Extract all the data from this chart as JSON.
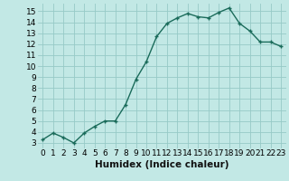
{
  "x": [
    0,
    1,
    2,
    3,
    4,
    5,
    6,
    7,
    8,
    9,
    10,
    11,
    12,
    13,
    14,
    15,
    16,
    17,
    18,
    19,
    20,
    21,
    22,
    23
  ],
  "y": [
    3.3,
    3.9,
    3.5,
    3.0,
    3.9,
    4.5,
    5.0,
    5.0,
    6.5,
    8.8,
    10.4,
    12.7,
    13.9,
    14.4,
    14.8,
    14.5,
    14.4,
    14.9,
    15.3,
    13.9,
    13.2,
    12.2,
    12.2,
    11.8
  ],
  "line_color": "#1a6b5a",
  "marker": "+",
  "bg_color": "#c2e8e5",
  "grid_color": "#96cac7",
  "xlabel": "Humidex (Indice chaleur)",
  "xlim": [
    -0.5,
    23.5
  ],
  "ylim": [
    2.5,
    15.7
  ],
  "yticks": [
    3,
    4,
    5,
    6,
    7,
    8,
    9,
    10,
    11,
    12,
    13,
    14,
    15
  ],
  "xticks": [
    0,
    1,
    2,
    3,
    4,
    5,
    6,
    7,
    8,
    9,
    10,
    11,
    12,
    13,
    14,
    15,
    16,
    17,
    18,
    19,
    20,
    21,
    22,
    23
  ],
  "xtick_labels": [
    "0",
    "1",
    "2",
    "3",
    "4",
    "5",
    "6",
    "7",
    "8",
    "9",
    "10",
    "11",
    "12",
    "13",
    "14",
    "15",
    "16",
    "17",
    "18",
    "19",
    "20",
    "21",
    "22",
    "23"
  ],
  "tick_fontsize": 6.5,
  "xlabel_fontsize": 7.5,
  "linewidth": 1.0,
  "markersize": 3.5,
  "markeredgewidth": 1.0
}
